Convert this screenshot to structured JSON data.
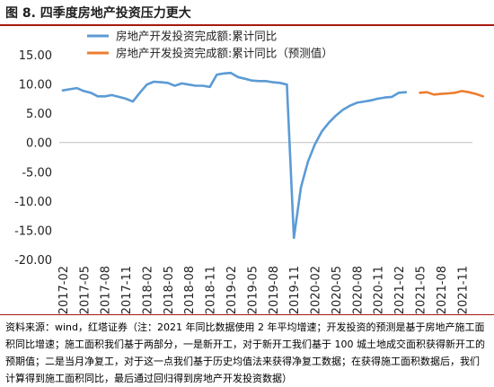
{
  "figure": {
    "title": "图 8. 四季度房地产投资压力更大",
    "source_note": "资料来源：wind，红塔证券（注：2021 年同比数据使用 2 年平均增速；开发投资的预测是基于房地产施工面积同比增速；施工面积我们基于两部分，一是新开工，对于新开工我们基于 100 城土地成交面积获得新开工的预期值；二是当月净复工，对于这一点我们基于历史均值法来获得净复工数据；在获得施工面积数据后，我们计算得到施工面积同比，最后通过回归得到房地产开发投资数据）"
  },
  "colors": {
    "series_actual": "#5b9bd5",
    "series_forecast": "#ed7d31",
    "rule": "#a9180f"
  },
  "chart_data": {
    "type": "line",
    "title": "",
    "xlabel": "",
    "ylabel": "",
    "ylim": [
      -20,
      15
    ],
    "y_ticks": [
      "15.00",
      "10.00",
      "5.00",
      "0.00",
      "-5.00",
      "-10.00",
      "-15.00",
      "-20.00"
    ],
    "y_tick_values": [
      15,
      10,
      5,
      0,
      -5,
      -10,
      -15,
      -20
    ],
    "x_tick_labels": [
      "2017-02",
      "2017-05",
      "2017-08",
      "2017-11",
      "2018-02",
      "2018-05",
      "2018-08",
      "2018-11",
      "2019-02",
      "2019-05",
      "2019-08",
      "2019-11",
      "2020-02",
      "2020-05",
      "2020-08",
      "2020-11",
      "2021-02",
      "2021-05",
      "2021-08",
      "2021-11"
    ],
    "legend_position": "top-left",
    "grid": false,
    "series": [
      {
        "name": "房地产开发投资完成额:累计同比",
        "start": "2017-02",
        "values": [
          8.9,
          9.1,
          9.3,
          8.8,
          8.5,
          7.9,
          7.9,
          8.1,
          7.8,
          7.5,
          7.0,
          8.5,
          9.9,
          10.4,
          10.3,
          10.2,
          9.7,
          10.1,
          9.9,
          9.7,
          9.7,
          9.5,
          11.6,
          11.8,
          11.9,
          11.2,
          10.9,
          10.6,
          10.5,
          10.5,
          10.3,
          10.2,
          9.9,
          -16.3,
          -7.7,
          -3.3,
          -0.3,
          1.9,
          3.4,
          4.6,
          5.6,
          6.3,
          6.8,
          7.0,
          7.2,
          7.5,
          7.7,
          7.8,
          8.5,
          8.6
        ]
      },
      {
        "name": "房地产开发投资完成额:累计同比（预测值）",
        "start": "2021-05",
        "values": [
          8.5,
          8.6,
          8.2,
          8.3,
          8.4,
          8.5,
          8.8,
          8.6,
          8.3,
          7.9
        ]
      }
    ]
  }
}
